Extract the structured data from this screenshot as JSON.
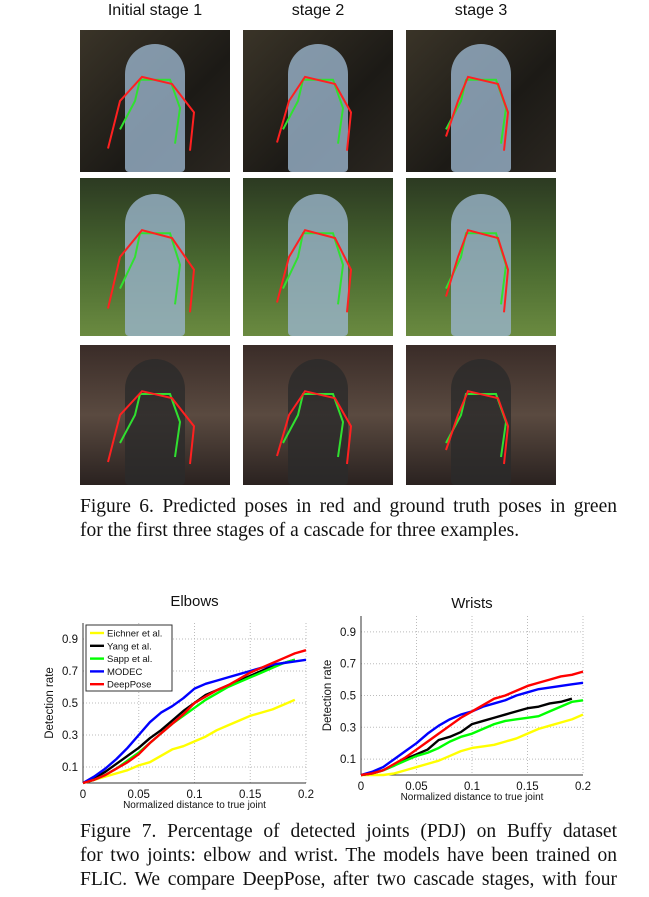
{
  "figure6": {
    "column_labels": [
      "Initial stage 1",
      "stage 2",
      "stage 3"
    ],
    "caption_lines": [
      "Figure 6. Predicted poses in red and ground truth poses in green",
      "for the first three stages of a cascade for three examples."
    ],
    "colors": {
      "predicted": "#ff2020",
      "ground_truth": "#30e030"
    }
  },
  "figure7": {
    "caption_lines": [
      "Figure 7.   Percentage of detected joints (PDJ) on Buffy dataset",
      "for two joints: elbow and wrist. The models have been trained on",
      "FLIC. We compare DeepPose, after two cascade stages, with four"
    ]
  },
  "chart_data": [
    {
      "type": "line",
      "title": "Elbows",
      "xlabel": "Normalized distance to true joint",
      "ylabel": "Detection rate",
      "xlim": [
        0,
        0.2
      ],
      "ylim": [
        0,
        1
      ],
      "xticks": [
        "0",
        "0.05",
        "0.1",
        "0.15",
        "0.2"
      ],
      "yticks": [
        "0.1",
        "0.3",
        "0.5",
        "0.7",
        "0.9"
      ],
      "grid": true,
      "legend": "top-left",
      "x": [
        0,
        0.01,
        0.02,
        0.03,
        0.04,
        0.05,
        0.06,
        0.07,
        0.08,
        0.09,
        0.1,
        0.11,
        0.12,
        0.13,
        0.14,
        0.15,
        0.16,
        0.17,
        0.18,
        0.19,
        0.2
      ],
      "series": [
        {
          "name": "Eichner et al.",
          "color": "#ffff00",
          "values": [
            0,
            0.02,
            0.04,
            0.06,
            0.08,
            0.11,
            0.13,
            0.17,
            0.21,
            0.23,
            0.26,
            0.29,
            0.33,
            0.36,
            0.39,
            0.42,
            0.44,
            0.46,
            0.49,
            0.52,
            null
          ]
        },
        {
          "name": "Yang et al.",
          "color": "#000000",
          "values": [
            0,
            0.03,
            0.07,
            0.12,
            0.17,
            0.22,
            0.28,
            0.33,
            0.39,
            0.45,
            0.5,
            0.55,
            0.58,
            0.61,
            0.64,
            0.67,
            0.7,
            0.73,
            0.75,
            0.77,
            null
          ]
        },
        {
          "name": "Sapp et al.",
          "color": "#00ff00",
          "values": [
            0,
            0.02,
            0.05,
            0.09,
            0.14,
            0.19,
            0.25,
            0.31,
            0.37,
            0.42,
            0.47,
            0.52,
            0.56,
            0.6,
            0.63,
            0.66,
            0.69,
            0.72,
            0.75,
            0.77,
            null
          ]
        },
        {
          "name": "MODEC",
          "color": "#0000ff",
          "values": [
            0,
            0.04,
            0.09,
            0.15,
            0.22,
            0.3,
            0.38,
            0.44,
            0.48,
            0.53,
            0.59,
            0.62,
            0.64,
            0.66,
            0.68,
            0.7,
            0.72,
            0.74,
            0.75,
            0.76,
            0.77
          ]
        },
        {
          "name": "DeepPose",
          "color": "#ff0000",
          "values": [
            0,
            0.02,
            0.05,
            0.09,
            0.13,
            0.18,
            0.25,
            0.31,
            0.37,
            0.43,
            0.5,
            0.54,
            0.58,
            0.61,
            0.65,
            0.69,
            0.72,
            0.75,
            0.78,
            0.81,
            0.83
          ]
        }
      ]
    },
    {
      "type": "line",
      "title": "Wrists",
      "xlabel": "Normalized distance to true joint",
      "ylabel": "Detection rate",
      "xlim": [
        0,
        0.2
      ],
      "ylim": [
        0,
        1
      ],
      "xticks": [
        "0",
        "0.05",
        "0.1",
        "0.15",
        "0.2"
      ],
      "yticks": [
        "0.1",
        "0.3",
        "0.5",
        "0.7",
        "0.9"
      ],
      "grid": true,
      "x": [
        0,
        0.01,
        0.02,
        0.03,
        0.04,
        0.05,
        0.06,
        0.07,
        0.08,
        0.09,
        0.1,
        0.11,
        0.12,
        0.13,
        0.14,
        0.15,
        0.16,
        0.17,
        0.18,
        0.19,
        0.2
      ],
      "series": [
        {
          "color": "#ffff00",
          "values": [
            0,
            0,
            0,
            0.01,
            0.03,
            0.05,
            0.07,
            0.09,
            0.12,
            0.15,
            0.17,
            0.18,
            0.19,
            0.21,
            0.23,
            0.26,
            0.29,
            0.31,
            0.33,
            0.35,
            0.38
          ]
        },
        {
          "color": "#000000",
          "values": [
            0,
            0.01,
            0.03,
            0.06,
            0.1,
            0.13,
            0.16,
            0.22,
            0.24,
            0.27,
            0.32,
            0.34,
            0.36,
            0.38,
            0.4,
            0.42,
            0.43,
            0.45,
            0.46,
            0.48,
            null
          ]
        },
        {
          "color": "#00ff00",
          "values": [
            0,
            0.01,
            0.03,
            0.06,
            0.09,
            0.12,
            0.14,
            0.17,
            0.21,
            0.24,
            0.26,
            0.29,
            0.32,
            0.34,
            0.35,
            0.36,
            0.37,
            0.4,
            0.43,
            0.46,
            0.47
          ]
        },
        {
          "color": "#0000ff",
          "values": [
            0,
            0.02,
            0.05,
            0.1,
            0.15,
            0.2,
            0.26,
            0.31,
            0.35,
            0.38,
            0.4,
            0.43,
            0.45,
            0.47,
            0.5,
            0.52,
            0.54,
            0.55,
            0.56,
            0.57,
            0.58
          ]
        },
        {
          "color": "#ff0000",
          "values": [
            0,
            0.01,
            0.03,
            0.07,
            0.11,
            0.16,
            0.21,
            0.26,
            0.31,
            0.36,
            0.4,
            0.44,
            0.48,
            0.5,
            0.53,
            0.56,
            0.58,
            0.6,
            0.62,
            0.63,
            0.65
          ]
        }
      ]
    }
  ]
}
